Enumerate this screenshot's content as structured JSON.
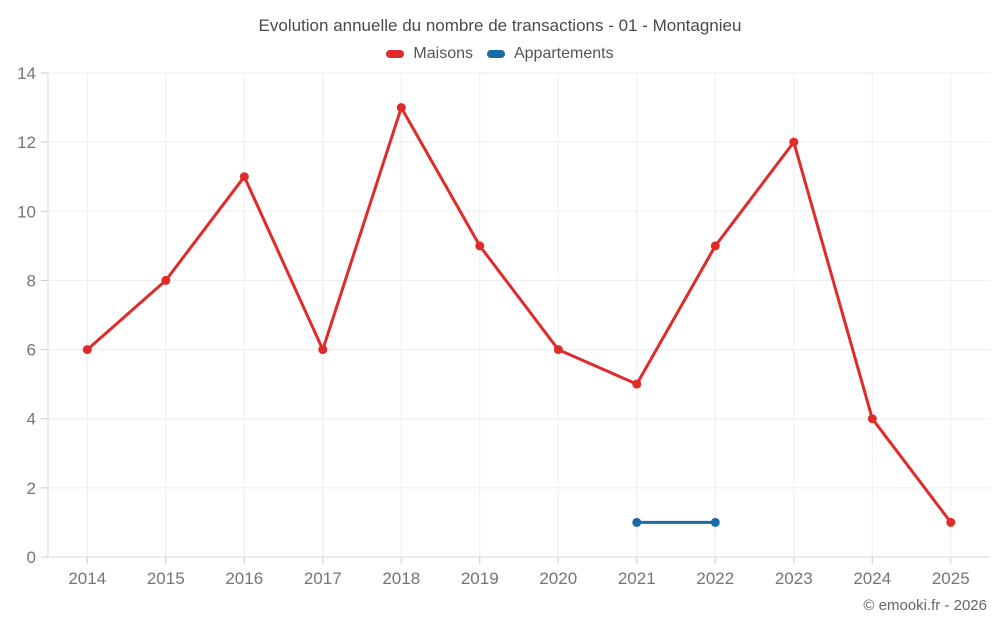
{
  "chart_data": {
    "type": "line",
    "title": "Evolution annuelle du nombre de transactions - 01 - Montagnieu",
    "xlabel": "",
    "ylabel": "",
    "categories": [
      "2014",
      "2015",
      "2016",
      "2017",
      "2018",
      "2019",
      "2020",
      "2021",
      "2022",
      "2023",
      "2024",
      "2025"
    ],
    "series": [
      {
        "name": "Maisons",
        "color": "#e02b2b",
        "values": [
          6,
          8,
          11,
          6,
          13,
          9,
          6,
          5,
          9,
          12,
          4,
          1
        ]
      },
      {
        "name": "Appartements",
        "color": "#1a6ba6",
        "values": [
          null,
          null,
          null,
          null,
          null,
          null,
          null,
          1,
          1,
          null,
          null,
          null
        ]
      }
    ],
    "ylim": [
      0,
      14
    ],
    "ytick_step": 2,
    "grid": true,
    "legend_position": "top",
    "style": {
      "grid_color": "#ededed",
      "axis_color": "#d9d9d9",
      "tick_color": "#cccccc",
      "tick_label_color": "#757575",
      "title_color": "#4a4a4a",
      "legend_text_color": "#555555"
    }
  },
  "footer": {
    "credit": "© emooki.fr - 2026"
  }
}
